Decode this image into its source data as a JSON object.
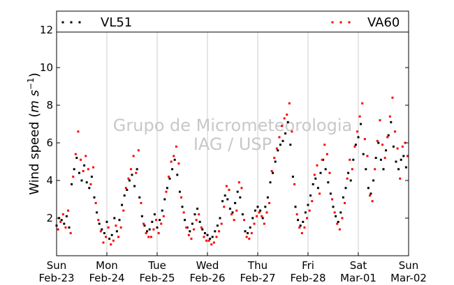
{
  "chart_data": {
    "type": "scatter",
    "ylabel": "Wind speed (m s⁻¹)",
    "ylabel_main": "Wind speed (",
    "ylabel_unit": "m s",
    "ylabel_exp": "−1",
    "ylabel_close": ")",
    "ylim": [
      0,
      13
    ],
    "yticks": [
      2,
      4,
      6,
      8,
      10,
      12
    ],
    "xlim": [
      0,
      7
    ],
    "grid": "vertical",
    "legend_position": "top",
    "watermark": [
      "Grupo de Micrometeorologia",
      "IAG / USP"
    ],
    "x_ticks": [
      {
        "x": 0,
        "day": "Sun",
        "date": "Feb-23"
      },
      {
        "x": 1,
        "day": "Mon",
        "date": "Feb-24"
      },
      {
        "x": 2,
        "day": "Tue",
        "date": "Feb-25"
      },
      {
        "x": 3,
        "day": "Wed",
        "date": "Feb-26"
      },
      {
        "x": 4,
        "day": "Thu",
        "date": "Feb-27"
      },
      {
        "x": 5,
        "day": "Fri",
        "date": "Feb-28"
      },
      {
        "x": 6,
        "day": "Sat",
        "date": "Mar-01"
      },
      {
        "x": 7,
        "day": "Sun",
        "date": "Mar-02"
      }
    ],
    "series": [
      {
        "name": "VL51",
        "color": "#000000",
        "x": [
          0.0,
          0.05,
          0.1,
          0.15,
          0.2,
          0.25,
          0.3,
          0.35,
          0.4,
          0.45,
          0.5,
          0.55,
          0.6,
          0.65,
          0.7,
          0.75,
          0.8,
          0.85,
          0.9,
          0.95,
          1.0,
          1.05,
          1.1,
          1.15,
          1.2,
          1.25,
          1.3,
          1.35,
          1.4,
          1.45,
          1.5,
          1.55,
          1.6,
          1.65,
          1.7,
          1.75,
          1.8,
          1.85,
          1.9,
          1.95,
          2.0,
          2.05,
          2.1,
          2.15,
          2.2,
          2.25,
          2.3,
          2.35,
          2.4,
          2.45,
          2.5,
          2.55,
          2.6,
          2.65,
          2.7,
          2.75,
          2.8,
          2.85,
          2.9,
          2.95,
          3.0,
          3.05,
          3.1,
          3.15,
          3.2,
          3.25,
          3.3,
          3.35,
          3.4,
          3.45,
          3.5,
          3.55,
          3.6,
          3.65,
          3.7,
          3.75,
          3.8,
          3.85,
          3.9,
          3.95,
          4.0,
          4.05,
          4.1,
          4.15,
          4.2,
          4.25,
          4.3,
          4.35,
          4.4,
          4.45,
          4.5,
          4.55,
          4.6,
          4.65,
          4.7,
          4.75,
          4.8,
          4.85,
          4.9,
          4.95,
          5.0,
          5.05,
          5.1,
          5.15,
          5.2,
          5.25,
          5.3,
          5.35,
          5.4,
          5.45,
          5.5,
          5.55,
          5.6,
          5.65,
          5.7,
          5.75,
          5.8,
          5.85,
          5.9,
          5.95,
          6.0,
          6.05,
          6.1,
          6.15,
          6.2,
          6.25,
          6.3,
          6.35,
          6.4,
          6.45,
          6.5,
          6.55,
          6.6,
          6.65,
          6.7,
          6.75,
          6.8,
          6.85,
          6.9,
          6.95
        ],
        "y": [
          1.6,
          2.0,
          1.9,
          1.7,
          2.1,
          1.5,
          3.8,
          4.6,
          5.2,
          4.4,
          4.0,
          4.8,
          3.9,
          3.6,
          4.2,
          3.1,
          2.3,
          1.7,
          1.4,
          1.2,
          1.8,
          0.9,
          1.1,
          2.0,
          1.3,
          1.9,
          2.7,
          3.2,
          3.5,
          4.0,
          4.3,
          3.7,
          4.6,
          3.1,
          2.1,
          1.6,
          1.3,
          1.4,
          1.8,
          2.2,
          1.5,
          1.9,
          2.4,
          3.0,
          3.6,
          4.1,
          4.6,
          5.1,
          4.3,
          3.4,
          2.6,
          1.9,
          1.5,
          1.3,
          1.7,
          2.2,
          2.5,
          1.8,
          1.4,
          1.2,
          1.1,
          0.9,
          1.0,
          1.3,
          1.6,
          2.0,
          2.9,
          3.2,
          3.0,
          2.5,
          2.3,
          2.8,
          3.4,
          3.1,
          2.2,
          1.3,
          1.2,
          1.5,
          2.0,
          2.4,
          2.6,
          2.4,
          2.0,
          2.6,
          3.1,
          3.9,
          4.4,
          5.0,
          5.6,
          5.9,
          6.1,
          6.5,
          7.1,
          5.9,
          4.2,
          2.6,
          1.9,
          1.6,
          1.8,
          2.3,
          2.7,
          3.2,
          3.8,
          4.1,
          3.6,
          4.4,
          5.1,
          4.6,
          3.9,
          3.3,
          2.6,
          2.1,
          1.8,
          2.3,
          3.1,
          3.6,
          4.4,
          4.0,
          5.1,
          5.9,
          6.3,
          7.0,
          5.4,
          4.6,
          3.6,
          3.3,
          4.0,
          5.2,
          6.0,
          5.1,
          4.6,
          5.6,
          6.4,
          7.1,
          5.8,
          5.0,
          4.6,
          5.1,
          5.3,
          4.7
        ]
      },
      {
        "name": "VA60",
        "color": "#ff0000",
        "x": [
          0.03,
          0.08,
          0.13,
          0.18,
          0.23,
          0.28,
          0.33,
          0.38,
          0.43,
          0.48,
          0.53,
          0.58,
          0.63,
          0.68,
          0.73,
          0.78,
          0.83,
          0.88,
          0.93,
          0.98,
          1.03,
          1.08,
          1.13,
          1.18,
          1.23,
          1.28,
          1.33,
          1.38,
          1.43,
          1.48,
          1.53,
          1.58,
          1.63,
          1.68,
          1.73,
          1.78,
          1.83,
          1.88,
          1.93,
          1.98,
          2.03,
          2.08,
          2.13,
          2.18,
          2.23,
          2.28,
          2.33,
          2.38,
          2.43,
          2.48,
          2.53,
          2.58,
          2.63,
          2.68,
          2.73,
          2.78,
          2.83,
          2.88,
          2.93,
          2.98,
          3.03,
          3.08,
          3.13,
          3.18,
          3.23,
          3.28,
          3.33,
          3.38,
          3.43,
          3.48,
          3.53,
          3.58,
          3.63,
          3.68,
          3.73,
          3.78,
          3.83,
          3.88,
          3.93,
          3.98,
          4.03,
          4.08,
          4.13,
          4.18,
          4.23,
          4.28,
          4.33,
          4.38,
          4.43,
          4.48,
          4.53,
          4.58,
          4.63,
          4.68,
          4.73,
          4.78,
          4.83,
          4.88,
          4.93,
          4.98,
          5.03,
          5.08,
          5.13,
          5.18,
          5.23,
          5.28,
          5.33,
          5.38,
          5.43,
          5.48,
          5.53,
          5.58,
          5.63,
          5.68,
          5.73,
          5.78,
          5.83,
          5.88,
          5.93,
          5.98,
          6.03,
          6.08,
          6.13,
          6.18,
          6.23,
          6.28,
          6.33,
          6.38,
          6.43,
          6.48,
          6.53,
          6.58,
          6.63,
          6.68,
          6.73,
          6.78,
          6.83,
          6.88,
          6.93,
          6.98
        ],
        "y": [
          1.4,
          1.8,
          2.2,
          1.5,
          2.4,
          1.2,
          4.2,
          5.4,
          6.6,
          5.1,
          4.5,
          5.3,
          4.6,
          3.8,
          4.7,
          2.8,
          1.9,
          1.3,
          0.7,
          1.0,
          1.5,
          0.6,
          0.8,
          1.6,
          1.0,
          1.5,
          2.4,
          3.6,
          4.1,
          4.6,
          5.3,
          4.4,
          5.6,
          2.8,
          1.7,
          1.2,
          1.0,
          1.0,
          1.4,
          1.9,
          1.2,
          1.7,
          2.1,
          3.4,
          4.2,
          5.0,
          5.3,
          5.8,
          4.9,
          3.1,
          2.3,
          1.5,
          1.1,
          0.9,
          1.4,
          1.9,
          2.2,
          1.5,
          1.0,
          0.8,
          0.8,
          0.6,
          0.7,
          1.0,
          1.3,
          1.7,
          2.6,
          3.7,
          3.5,
          2.2,
          1.9,
          2.4,
          3.9,
          3.6,
          1.9,
          1.0,
          0.9,
          1.2,
          1.7,
          2.1,
          2.3,
          2.1,
          1.7,
          2.3,
          2.8,
          4.5,
          5.2,
          5.7,
          6.3,
          6.9,
          7.3,
          7.5,
          8.1,
          6.6,
          3.8,
          2.2,
          1.5,
          1.2,
          1.5,
          2.0,
          2.4,
          2.9,
          4.3,
          4.8,
          3.3,
          5.1,
          5.9,
          5.4,
          4.4,
          3.0,
          2.3,
          1.7,
          1.4,
          2.0,
          2.8,
          4.1,
          5.1,
          4.6,
          5.8,
          6.6,
          7.4,
          8.1,
          6.2,
          5.3,
          3.2,
          2.9,
          4.6,
          6.1,
          7.2,
          5.9,
          5.2,
          6.3,
          7.4,
          8.4,
          6.6,
          5.7,
          4.1,
          5.8,
          6.0,
          5.3
        ]
      }
    ]
  }
}
